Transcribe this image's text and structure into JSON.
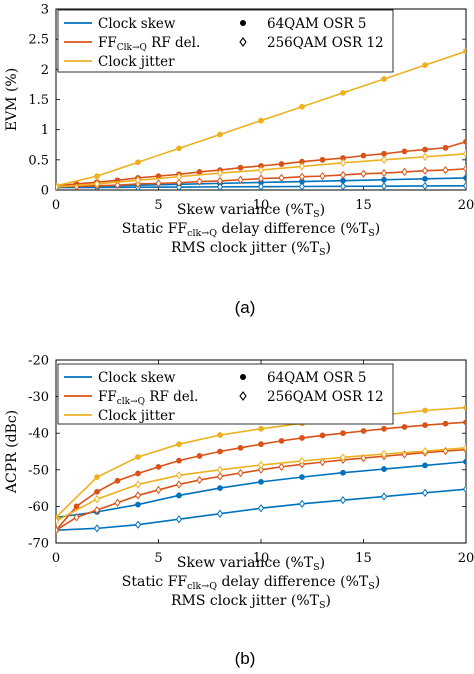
{
  "colors": {
    "clock_skew": "#0072BD",
    "ff_delay": "#D95319",
    "clock_jitter": "#EDB120",
    "axis": "#000000"
  },
  "chart_data": [
    {
      "type": "line",
      "panel_label": "(a)",
      "ylabel": "EVM (%)",
      "xlabel_lines": [
        {
          "main": "Skew variance (%T",
          "sub": "S",
          "end": ")"
        },
        {
          "main": "Static FF",
          "sub": "clk→Q",
          "mid": " delay difference (%T",
          "sub2": "S",
          "end": ")"
        },
        {
          "main": "RMS clock jitter (%T",
          "sub": "S",
          "end": ")"
        }
      ],
      "xlim": [
        0,
        20
      ],
      "ylim": [
        0,
        3
      ],
      "xticks": [
        0,
        5,
        10,
        15,
        20
      ],
      "yticks": [
        0,
        0.5,
        1,
        1.5,
        2,
        2.5,
        3
      ],
      "ytick_labels": [
        "0",
        "0.5",
        "1",
        "1.5",
        "2",
        "2.5",
        "3"
      ],
      "legend": {
        "position": "top",
        "entries": [
          {
            "label": "Clock skew",
            "kind": "line",
            "series": "clock_skew"
          },
          {
            "label": "FF",
            "sub": "Clk→Q",
            "label_end": " RF del.",
            "kind": "line",
            "series": "ff_delay"
          },
          {
            "label": "Clock jitter",
            "kind": "line",
            "series": "clock_jitter"
          },
          {
            "label": "64QAM OSR 5",
            "kind": "dot"
          },
          {
            "label": "256QAM OSR 12",
            "kind": "diamond"
          }
        ]
      },
      "series": [
        {
          "key": "clock_skew",
          "marker": "dot",
          "x": [
            0,
            2,
            4,
            6,
            8,
            10,
            12,
            14,
            16,
            18,
            20
          ],
          "y": [
            0.05,
            0.065,
            0.08,
            0.095,
            0.11,
            0.125,
            0.14,
            0.155,
            0.17,
            0.185,
            0.2
          ]
        },
        {
          "key": "clock_skew",
          "marker": "diamond",
          "x": [
            0,
            2,
            4,
            6,
            8,
            10,
            12,
            14,
            16,
            18,
            20
          ],
          "y": [
            0.04,
            0.043,
            0.046,
            0.049,
            0.052,
            0.055,
            0.058,
            0.061,
            0.064,
            0.067,
            0.07
          ]
        },
        {
          "key": "ff_delay",
          "marker": "dot",
          "x": [
            0,
            1,
            2,
            3,
            4,
            5,
            6,
            7,
            8,
            9,
            10,
            11,
            12,
            13,
            14,
            15,
            16,
            17,
            18,
            19,
            20
          ],
          "y": [
            0.07,
            0.1,
            0.13,
            0.16,
            0.2,
            0.23,
            0.26,
            0.3,
            0.33,
            0.37,
            0.4,
            0.43,
            0.47,
            0.5,
            0.53,
            0.57,
            0.6,
            0.64,
            0.67,
            0.7,
            0.8
          ]
        },
        {
          "key": "ff_delay",
          "marker": "diamond",
          "x": [
            0,
            1,
            2,
            3,
            4,
            5,
            6,
            7,
            8,
            9,
            10,
            11,
            12,
            13,
            14,
            15,
            16,
            17,
            18,
            19,
            20
          ],
          "y": [
            0.05,
            0.06,
            0.07,
            0.08,
            0.1,
            0.11,
            0.12,
            0.14,
            0.15,
            0.17,
            0.19,
            0.2,
            0.22,
            0.23,
            0.25,
            0.27,
            0.28,
            0.3,
            0.32,
            0.33,
            0.35
          ]
        },
        {
          "key": "clock_jitter",
          "marker": "dot",
          "x": [
            0,
            2,
            4,
            6,
            8,
            10,
            12,
            14,
            16,
            18,
            20
          ],
          "y": [
            0.07,
            0.23,
            0.46,
            0.69,
            0.92,
            1.15,
            1.38,
            1.61,
            1.84,
            2.07,
            2.3
          ]
        },
        {
          "key": "clock_jitter",
          "marker": "diamond",
          "x": [
            0,
            2,
            4,
            6,
            8,
            10,
            12,
            14,
            16,
            18,
            20
          ],
          "y": [
            0.05,
            0.1,
            0.16,
            0.22,
            0.28,
            0.33,
            0.39,
            0.45,
            0.5,
            0.55,
            0.6
          ]
        }
      ]
    },
    {
      "type": "line",
      "panel_label": "(b)",
      "ylabel": "ACPR (dBc)",
      "xlabel_lines": [
        {
          "main": "Skew variance (%T",
          "sub": "S",
          "end": ")"
        },
        {
          "main": "Static FF",
          "sub": "clk→Q",
          "mid": " delay difference (%T",
          "sub2": "S",
          "end": ")"
        },
        {
          "main": "RMS clock jitter (%T",
          "sub": "S",
          "end": ")"
        }
      ],
      "xlim": [
        0,
        20
      ],
      "ylim": [
        -70,
        -20
      ],
      "xticks": [
        0,
        5,
        10,
        15,
        20
      ],
      "yticks": [
        -70,
        -60,
        -50,
        -40,
        -30,
        -20
      ],
      "ytick_labels": [
        "-70",
        "-60",
        "-50",
        "-40",
        "-30",
        "-20"
      ],
      "legend": {
        "position": "top",
        "entries": [
          {
            "label": "Clock skew",
            "kind": "line",
            "series": "clock_skew"
          },
          {
            "label": "FF",
            "sub": "clk→Q",
            "label_end": " RF del.",
            "kind": "line",
            "series": "ff_delay"
          },
          {
            "label": "Clock jitter",
            "kind": "line",
            "series": "clock_jitter"
          },
          {
            "label": "64QAM OSR 5",
            "kind": "dot"
          },
          {
            "label": "256QAM OSR 12",
            "kind": "diamond"
          }
        ]
      },
      "series": [
        {
          "key": "clock_skew",
          "marker": "dot",
          "x": [
            0,
            2,
            4,
            6,
            8,
            10,
            12,
            14,
            16,
            18,
            20
          ],
          "y": [
            -63,
            -61.5,
            -59.5,
            -57,
            -55,
            -53.3,
            -52,
            -50.8,
            -49.8,
            -48.8,
            -47.8
          ]
        },
        {
          "key": "clock_skew",
          "marker": "diamond",
          "x": [
            0,
            2,
            4,
            6,
            8,
            10,
            12,
            14,
            16,
            18,
            20
          ],
          "y": [
            -66.5,
            -66,
            -65,
            -63.5,
            -62,
            -60.5,
            -59.3,
            -58.3,
            -57.3,
            -56.3,
            -55.3
          ]
        },
        {
          "key": "ff_delay",
          "marker": "dot",
          "x": [
            0,
            1,
            2,
            3,
            4,
            5,
            6,
            7,
            8,
            9,
            10,
            11,
            12,
            13,
            14,
            15,
            16,
            17,
            18,
            19,
            20
          ],
          "y": [
            -66.5,
            -60,
            -56,
            -53,
            -51,
            -49.2,
            -47.5,
            -46.2,
            -45,
            -44,
            -43,
            -42.1,
            -41.3,
            -40.6,
            -40,
            -39.4,
            -38.8,
            -38.3,
            -37.8,
            -37.4,
            -37
          ]
        },
        {
          "key": "ff_delay",
          "marker": "diamond",
          "x": [
            0,
            1,
            2,
            3,
            4,
            5,
            6,
            7,
            8,
            9,
            10,
            11,
            12,
            13,
            14,
            15,
            16,
            17,
            18,
            19,
            20
          ],
          "y": [
            -66.5,
            -63,
            -61,
            -59,
            -57,
            -55.5,
            -54,
            -52.8,
            -51.8,
            -50.9,
            -50,
            -49.2,
            -48.5,
            -47.9,
            -47.3,
            -46.8,
            -46.3,
            -45.8,
            -45.3,
            -44.9,
            -44.5
          ]
        },
        {
          "key": "clock_jitter",
          "marker": "dot",
          "x": [
            0,
            2,
            4,
            6,
            8,
            10,
            12,
            14,
            16,
            18,
            20
          ],
          "y": [
            -63,
            -52,
            -46.5,
            -43,
            -40.5,
            -38.8,
            -37.3,
            -36,
            -35,
            -33.8,
            -33
          ]
        },
        {
          "key": "clock_jitter",
          "marker": "diamond",
          "x": [
            0,
            2,
            4,
            6,
            8,
            10,
            12,
            14,
            16,
            18,
            20
          ],
          "y": [
            -64,
            -58,
            -54,
            -51.5,
            -50,
            -48.7,
            -47.6,
            -46.6,
            -45.7,
            -44.9,
            -44
          ]
        }
      ]
    }
  ]
}
